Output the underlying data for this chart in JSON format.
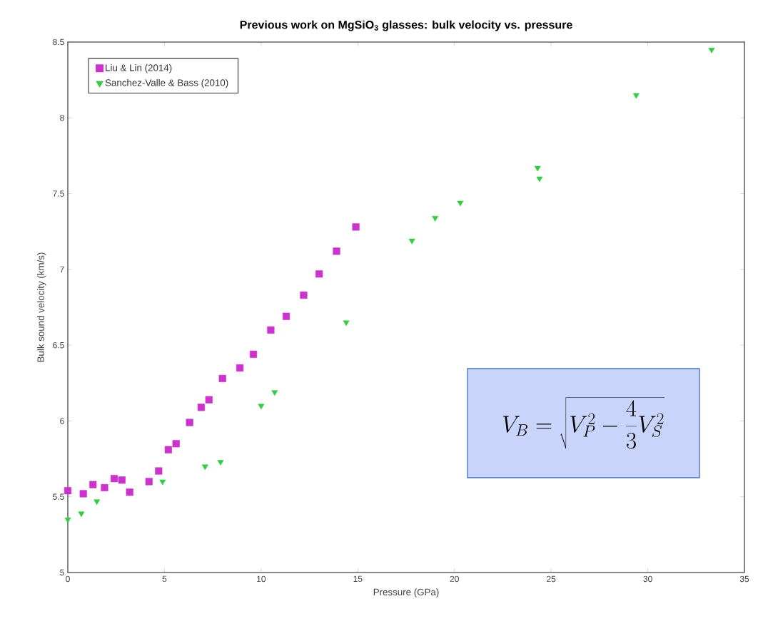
{
  "chart_data": {
    "type": "scatter",
    "title": "Previous work on MgSiO$_{3}$ glasses: bulk velocity vs. pressure",
    "xlabel": "Pressure (GPa)",
    "ylabel": "Bulk sound velocity (km/s)",
    "xlim": [
      0,
      35
    ],
    "ylim": [
      5,
      8.5
    ],
    "xticks": [
      0,
      5,
      10,
      15,
      20,
      25,
      30,
      35
    ],
    "yticks": [
      5,
      5.5,
      6,
      6.5,
      7,
      7.5,
      8,
      8.5
    ],
    "legend": "top left",
    "annotations": [
      "V_B = \\sqrt{V_P^2 - \\frac{4}{3}V_S^2}"
    ],
    "series": [
      {
        "name": "Liu & Lin (2014)",
        "color": "#cc33cc",
        "marker": "square",
        "x": [
          0.0,
          0.8,
          1.3,
          1.9,
          2.4,
          2.8,
          3.2,
          4.2,
          4.7,
          5.2,
          5.6,
          6.3,
          6.9,
          7.3,
          8.0,
          8.9,
          9.6,
          10.5,
          11.3,
          12.2,
          13.0,
          13.9,
          14.9
        ],
        "values": [
          5.54,
          5.52,
          5.58,
          5.56,
          5.62,
          5.61,
          5.53,
          5.6,
          5.67,
          5.81,
          5.85,
          5.99,
          6.09,
          6.14,
          6.28,
          6.35,
          6.44,
          6.6,
          6.69,
          6.83,
          6.97,
          7.12,
          7.28
        ]
      },
      {
        "name": "Sanchez-Valle & Bass (2010)",
        "color": "#33cc44",
        "marker": "triangle",
        "x": [
          0.0,
          0.7,
          1.5,
          4.9,
          7.1,
          7.9,
          10.0,
          10.7,
          14.4,
          17.8,
          19.0,
          20.3,
          24.3,
          24.4,
          29.4,
          33.3
        ],
        "values": [
          5.35,
          5.39,
          5.47,
          5.6,
          5.7,
          5.73,
          6.1,
          6.19,
          6.65,
          7.19,
          7.34,
          7.44,
          7.67,
          7.6,
          8.15,
          8.45
        ]
      }
    ]
  }
}
